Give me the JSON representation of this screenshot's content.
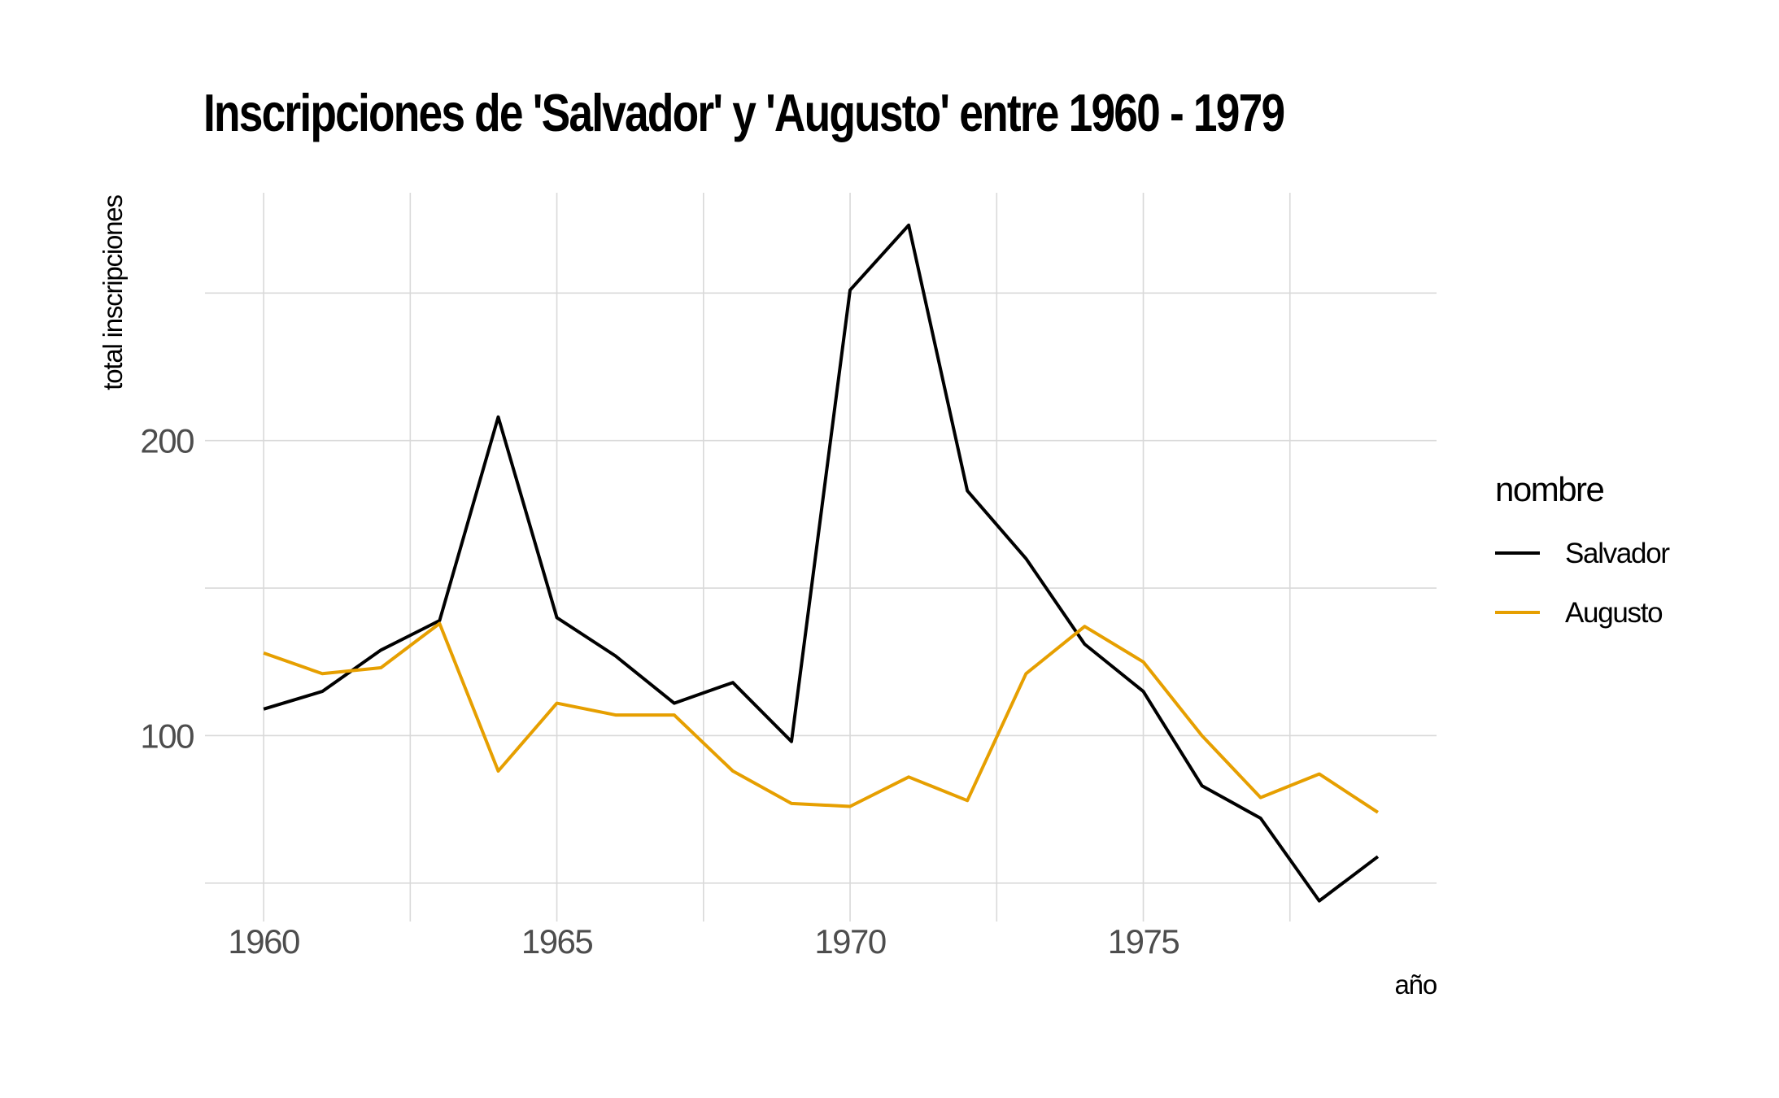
{
  "chart_data": {
    "type": "line",
    "title": "Inscripciones de 'Salvador' y 'Augusto' entre 1960 - 1979",
    "xlabel": "año",
    "ylabel": "total inscripciones",
    "x": [
      1960,
      1961,
      1962,
      1963,
      1964,
      1965,
      1966,
      1967,
      1968,
      1969,
      1970,
      1971,
      1972,
      1973,
      1974,
      1975,
      1976,
      1977,
      1978,
      1979
    ],
    "series": [
      {
        "name": "Salvador",
        "color": "#000000",
        "values": [
          109,
          115,
          129,
          139,
          208,
          140,
          127,
          111,
          118,
          98,
          251,
          273,
          183,
          160,
          131,
          115,
          83,
          72,
          44,
          59
        ]
      },
      {
        "name": "Augusto",
        "color": "#E69F00",
        "values": [
          128,
          121,
          123,
          138,
          88,
          111,
          107,
          107,
          88,
          77,
          76,
          86,
          78,
          121,
          137,
          125,
          100,
          79,
          87,
          74
        ]
      }
    ],
    "xlim": [
      1959.0,
      1980.0
    ],
    "ylim": [
      37,
      284
    ],
    "x_ticks": [
      {
        "value": 1960,
        "label": "1960"
      },
      {
        "value": 1965,
        "label": "1965"
      },
      {
        "value": 1970,
        "label": "1970"
      },
      {
        "value": 1975,
        "label": "1975"
      }
    ],
    "x_minor_gridlines": [
      1962.5,
      1967.5,
      1972.5,
      1977.5
    ],
    "y_ticks": [
      {
        "value": 100,
        "label": "100"
      },
      {
        "value": 200,
        "label": "200"
      }
    ],
    "y_minor_gridlines": [
      50,
      150,
      250
    ],
    "grid": true,
    "legend": {
      "title": "nombre",
      "position": "right"
    },
    "gridline_color": "#d9d9d9"
  }
}
